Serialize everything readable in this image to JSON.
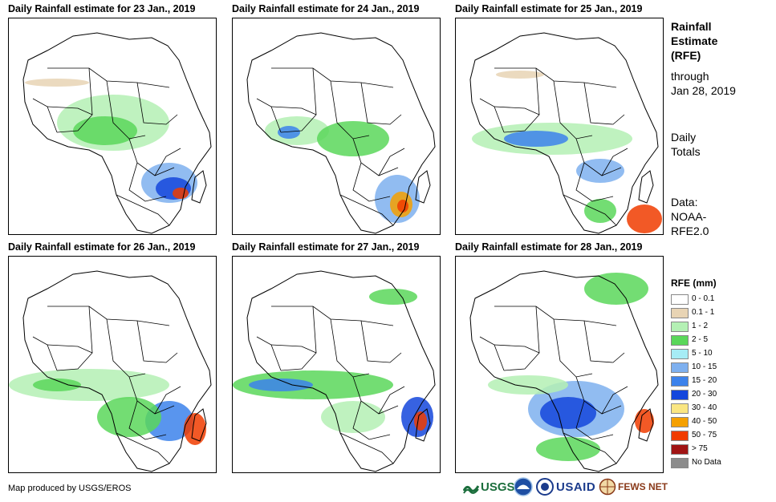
{
  "panels": [
    {
      "title": "Daily Rainfall estimate for 23 Jan., 2019"
    },
    {
      "title": "Daily Rainfall estimate for 24 Jan., 2019"
    },
    {
      "title": "Daily Rainfall estimate for 25 Jan., 2019"
    },
    {
      "title": "Daily Rainfall estimate for 26 Jan., 2019"
    },
    {
      "title": "Daily Rainfall estimate for 27 Jan., 2019"
    },
    {
      "title": "Daily Rainfall estimate for 28 Jan., 2019"
    }
  ],
  "sidebar": {
    "heading_line1": "Rainfall",
    "heading_line2": "Estimate",
    "heading_line3": "(RFE)",
    "through_label": "through",
    "through_date": "Jan 28, 2019",
    "totals_line1": "Daily",
    "totals_line2": "Totals",
    "data_line1": "Data:",
    "data_line2": "NOAA-",
    "data_line3": "RFE2.0"
  },
  "legend": {
    "title": "RFE (mm)",
    "items": [
      {
        "label": "0 - 0.1",
        "color": "#ffffff"
      },
      {
        "label": "0.1 - 1",
        "color": "#e8d4b4"
      },
      {
        "label": "1 - 2",
        "color": "#b4f0b4"
      },
      {
        "label": "2 - 5",
        "color": "#5ad75a"
      },
      {
        "label": "5 - 10",
        "color": "#a6ecf5"
      },
      {
        "label": "10 - 15",
        "color": "#7eb0ef"
      },
      {
        "label": "15 - 20",
        "color": "#3c82eb"
      },
      {
        "label": "20 - 30",
        "color": "#1446dc"
      },
      {
        "label": "30 - 40",
        "color": "#fae682"
      },
      {
        "label": "40 - 50",
        "color": "#f5a000"
      },
      {
        "label": "50 - 75",
        "color": "#f03c00"
      },
      {
        "label": "> 75",
        "color": "#a01414"
      },
      {
        "label": "No Data",
        "color": "#8c8c8c"
      }
    ]
  },
  "footer": {
    "credit": "Map produced by USGS/EROS",
    "logos": {
      "usgs": "USGS",
      "usaid": "USAID",
      "fewsnet": "FEWS NET"
    }
  }
}
